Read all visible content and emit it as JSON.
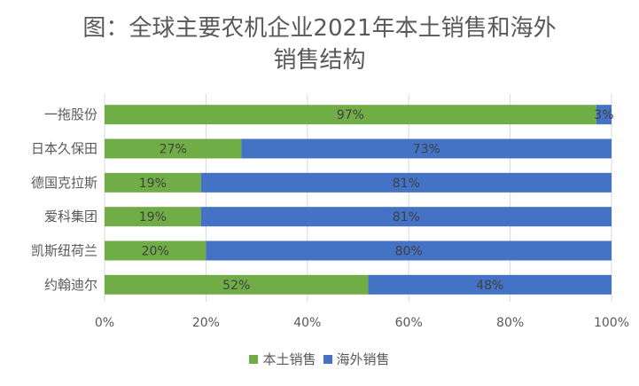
{
  "chart_data": {
    "type": "bar",
    "orientation": "horizontal",
    "stacked": true,
    "title_lines": [
      "图：全球主要农机企业2021年本土销售和海外",
      "销售结构"
    ],
    "categories": [
      "一拖股份",
      "日本久保田",
      "德国克拉斯",
      "爱科集团",
      "凯斯纽荷兰",
      "约翰迪尔"
    ],
    "series": [
      {
        "name": "本土销售",
        "color": "#70ad47",
        "values": [
          97,
          27,
          19,
          19,
          20,
          52
        ],
        "labels": [
          "97%",
          "27%",
          "19%",
          "19%",
          "20%",
          "52%"
        ]
      },
      {
        "name": "海外销售",
        "color": "#4472c4",
        "values": [
          3,
          73,
          81,
          81,
          80,
          48
        ],
        "labels": [
          "3%",
          "73%",
          "81%",
          "81%",
          "80%",
          "48%"
        ]
      }
    ],
    "xlim": [
      0,
      100
    ],
    "xticks": [
      "0%",
      "20%",
      "40%",
      "60%",
      "80%",
      "100%"
    ],
    "grid": true,
    "legend_position": "bottom"
  }
}
